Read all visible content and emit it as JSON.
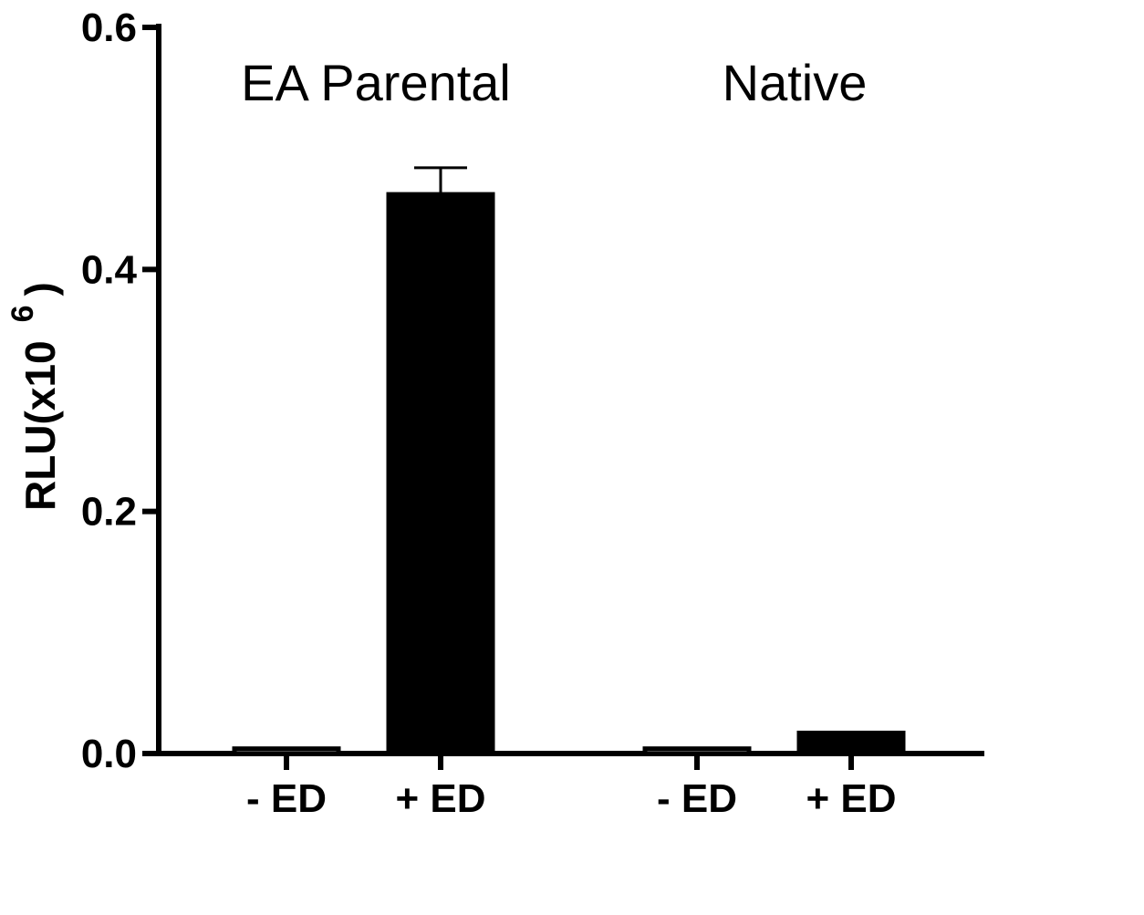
{
  "chart_data": {
    "type": "bar",
    "ylabel": "RLU(x10",
    "ylabel_exponent": "6",
    "ylabel_close": ")",
    "ylim": [
      0,
      0.6
    ],
    "yticks": [
      {
        "value": 0.0,
        "label": "0.0"
      },
      {
        "value": 0.2,
        "label": "0.2"
      },
      {
        "value": 0.4,
        "label": "0.4"
      },
      {
        "value": 0.6,
        "label": "0.6"
      }
    ],
    "groups": [
      {
        "name": "EA Parental",
        "bars": [
          {
            "label": "- ED",
            "value": 0.004,
            "error": 0,
            "fill": "#ffffff"
          },
          {
            "label": "+ ED",
            "value": 0.462,
            "error": 0.022,
            "fill": "#000000"
          }
        ]
      },
      {
        "name": "Native",
        "bars": [
          {
            "label": "- ED",
            "value": 0.004,
            "error": 0,
            "fill": "#ffffff"
          },
          {
            "label": "+ ED",
            "value": 0.017,
            "error": 0,
            "fill": "#000000"
          }
        ]
      }
    ],
    "grid": false,
    "legend": "none"
  }
}
